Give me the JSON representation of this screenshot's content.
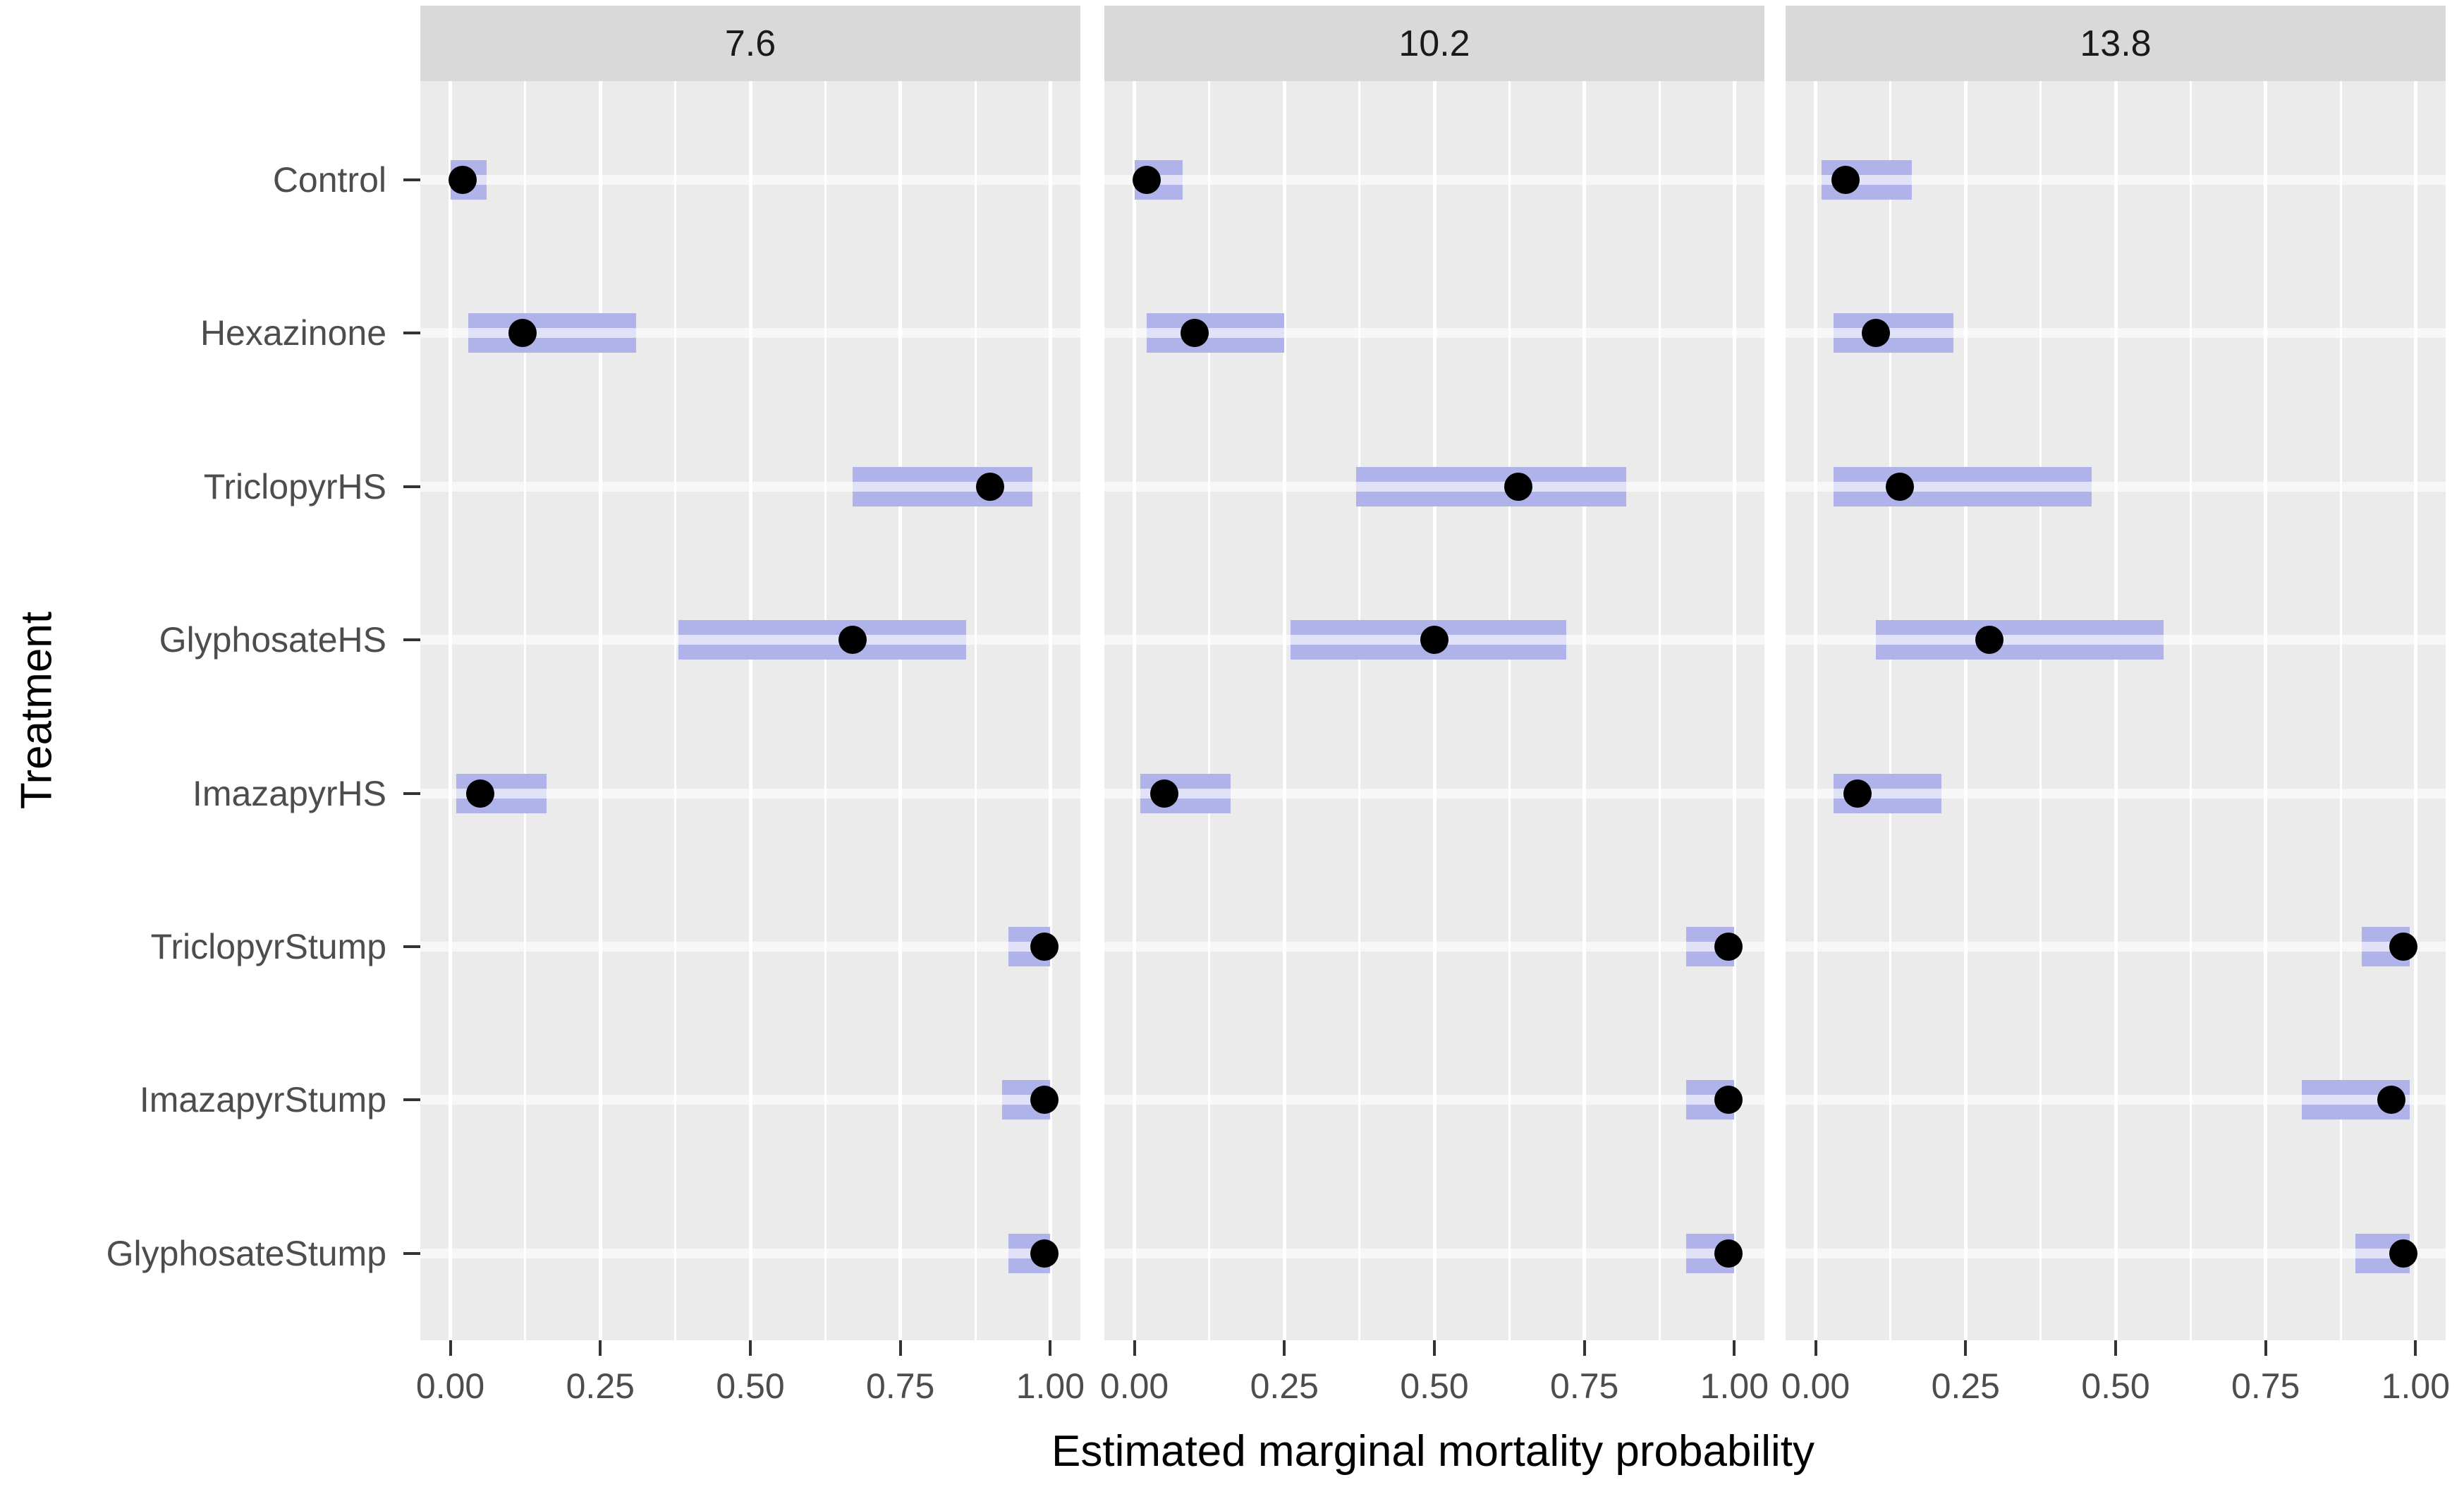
{
  "figure": {
    "x_axis_title": "Estimated marginal mortality probability",
    "y_axis_title": "Treatment"
  },
  "chart_data": {
    "type": "scatter",
    "subtype": "faceted-estimate-with-confidence-intervals",
    "facets": [
      "7.6",
      "10.2",
      "13.8"
    ],
    "categories_top_to_bottom": [
      "Control",
      "Hexazinone",
      "TriclopyrHS",
      "GlyphosateHS",
      "ImazapyrHS",
      "TriclopyrStump",
      "ImazapyrStump",
      "GlyphosateStump"
    ],
    "x_ticks": [
      {
        "value": 0.0,
        "label": "0.00"
      },
      {
        "value": 0.25,
        "label": "0.25"
      },
      {
        "value": 0.5,
        "label": "0.50"
      },
      {
        "value": 0.75,
        "label": "0.75"
      },
      {
        "value": 1.0,
        "label": "1.00"
      }
    ],
    "minor_grid_step": 0.125,
    "xlim": [
      0,
      1
    ],
    "xlabel": "Estimated marginal mortality probability",
    "ylabel": "Treatment",
    "legend": "none",
    "grid": "white on gray panels",
    "series": [
      {
        "facet": "7.6",
        "rows": [
          {
            "treatment": "Control",
            "estimate": 0.02,
            "lower": 0.0,
            "upper": 0.06
          },
          {
            "treatment": "Hexazinone",
            "estimate": 0.12,
            "lower": 0.03,
            "upper": 0.31
          },
          {
            "treatment": "TriclopyrHS",
            "estimate": 0.9,
            "lower": 0.67,
            "upper": 0.97
          },
          {
            "treatment": "GlyphosateHS",
            "estimate": 0.67,
            "lower": 0.38,
            "upper": 0.86
          },
          {
            "treatment": "ImazapyrHS",
            "estimate": 0.05,
            "lower": 0.01,
            "upper": 0.16
          },
          {
            "treatment": "TriclopyrStump",
            "estimate": 0.99,
            "lower": 0.93,
            "upper": 1.0
          },
          {
            "treatment": "ImazapyrStump",
            "estimate": 0.99,
            "lower": 0.92,
            "upper": 1.0
          },
          {
            "treatment": "GlyphosateStump",
            "estimate": 0.99,
            "lower": 0.93,
            "upper": 1.0
          }
        ]
      },
      {
        "facet": "10.2",
        "rows": [
          {
            "treatment": "Control",
            "estimate": 0.02,
            "lower": 0.0,
            "upper": 0.08
          },
          {
            "treatment": "Hexazinone",
            "estimate": 0.1,
            "lower": 0.02,
            "upper": 0.25
          },
          {
            "treatment": "TriclopyrHS",
            "estimate": 0.64,
            "lower": 0.37,
            "upper": 0.82
          },
          {
            "treatment": "GlyphosateHS",
            "estimate": 0.5,
            "lower": 0.26,
            "upper": 0.72
          },
          {
            "treatment": "ImazapyrHS",
            "estimate": 0.05,
            "lower": 0.01,
            "upper": 0.16
          },
          {
            "treatment": "TriclopyrStump",
            "estimate": 0.99,
            "lower": 0.92,
            "upper": 1.0
          },
          {
            "treatment": "ImazapyrStump",
            "estimate": 0.99,
            "lower": 0.92,
            "upper": 1.0
          },
          {
            "treatment": "GlyphosateStump",
            "estimate": 0.99,
            "lower": 0.92,
            "upper": 1.0
          }
        ]
      },
      {
        "facet": "13.8",
        "rows": [
          {
            "treatment": "Control",
            "estimate": 0.05,
            "lower": 0.01,
            "upper": 0.16
          },
          {
            "treatment": "Hexazinone",
            "estimate": 0.1,
            "lower": 0.03,
            "upper": 0.23
          },
          {
            "treatment": "TriclopyrHS",
            "estimate": 0.14,
            "lower": 0.03,
            "upper": 0.46
          },
          {
            "treatment": "GlyphosateHS",
            "estimate": 0.29,
            "lower": 0.1,
            "upper": 0.58
          },
          {
            "treatment": "ImazapyrHS",
            "estimate": 0.07,
            "lower": 0.03,
            "upper": 0.21
          },
          {
            "treatment": "TriclopyrStump",
            "estimate": 0.98,
            "lower": 0.91,
            "upper": 0.99
          },
          {
            "treatment": "ImazapyrStump",
            "estimate": 0.96,
            "lower": 0.81,
            "upper": 0.99
          },
          {
            "treatment": "GlyphosateStump",
            "estimate": 0.98,
            "lower": 0.9,
            "upper": 0.99
          }
        ]
      }
    ],
    "colors": {
      "interval_fill": "#b0b3e9",
      "point": "#000000",
      "panel_bg": "#ebebeb",
      "strip_bg": "#d9d9d9",
      "grid": "#ffffff",
      "tick_text": "#4d4d4d",
      "title_text": "#000000"
    }
  }
}
